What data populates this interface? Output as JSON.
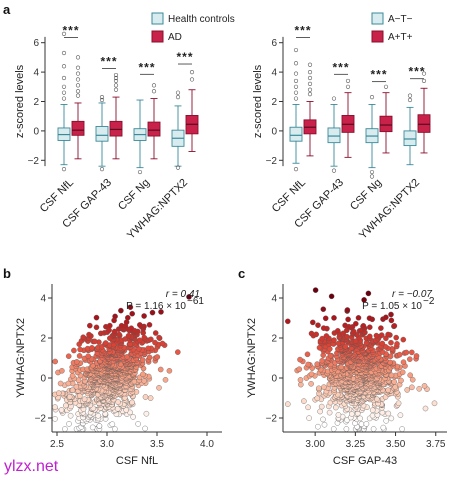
{
  "watermark": "ylzx.net",
  "chart_data": [
    {
      "panel": "a",
      "type": "box",
      "ylabel": "z-scored levels",
      "ylim": [
        -3,
        7
      ],
      "yticks": [
        -2,
        0,
        2,
        4,
        6
      ],
      "categories": [
        "CSF NfL",
        "CSF GAP-43",
        "CSF Ng",
        "YWHAG:NPTX2"
      ],
      "significance": [
        "***",
        "***",
        "***",
        "***"
      ],
      "series": [
        {
          "name": "Health controls",
          "color": "#d8ecef",
          "edge": "#3a8a99",
          "boxes": [
            {
              "q1": -0.65,
              "median": -0.25,
              "q3": 0.2,
              "wlo": -2.3,
              "whi": 1.8,
              "outliers": [
                2.2,
                2.6,
                3.0,
                3.6,
                4.4,
                5.3,
                6.6,
                -2.6
              ]
            },
            {
              "q1": -0.7,
              "median": -0.3,
              "q3": 0.3,
              "wlo": -2.4,
              "whi": 1.9,
              "outliers": [
                2.1,
                2.3,
                -2.6
              ]
            },
            {
              "q1": -0.65,
              "median": -0.25,
              "q3": 0.15,
              "wlo": -2.5,
              "whi": 2.1,
              "outliers": [
                -2.8
              ]
            },
            {
              "q1": -1.05,
              "median": -0.5,
              "q3": 0.05,
              "wlo": -2.4,
              "whi": 1.7,
              "outliers": [
                2.3,
                2.6,
                -2.5
              ]
            }
          ]
        },
        {
          "name": "AD",
          "color": "#c8224a",
          "edge": "#8a0f2c",
          "boxes": [
            {
              "q1": -0.3,
              "median": 0.05,
              "q3": 0.65,
              "wlo": -1.9,
              "whi": 1.9,
              "outliers": [
                2.4,
                2.7,
                3.1,
                3.5,
                3.9,
                4.3,
                5.0
              ]
            },
            {
              "q1": -0.35,
              "median": 0.1,
              "q3": 0.65,
              "wlo": -1.9,
              "whi": 2.3,
              "outliers": [
                2.8,
                3.1,
                3.4,
                3.6,
                3.8
              ]
            },
            {
              "q1": -0.35,
              "median": 0.05,
              "q3": 0.6,
              "wlo": -1.9,
              "whi": 2.2,
              "outliers": [
                2.7,
                3.1
              ]
            },
            {
              "q1": -0.2,
              "median": 0.45,
              "q3": 1.05,
              "wlo": -1.4,
              "whi": 2.8,
              "outliers": [
                3.5,
                4.0
              ]
            }
          ]
        }
      ]
    },
    {
      "panel": "",
      "type": "box",
      "ylabel": "z-scored levels",
      "ylim": [
        -3,
        7
      ],
      "yticks": [
        -2,
        0,
        2,
        4,
        6
      ],
      "categories": [
        "CSF NfL",
        "CSF GAP-43",
        "CSF Ng",
        "YWHAG:NPTX2"
      ],
      "significance": [
        "***",
        "***",
        "***",
        "***"
      ],
      "series": [
        {
          "name": "A−T−",
          "color": "#d8ecef",
          "edge": "#3a8a99",
          "boxes": [
            {
              "q1": -0.7,
              "median": -0.3,
              "q3": 0.25,
              "wlo": -2.2,
              "whi": 1.8,
              "outliers": [
                2.2,
                2.6,
                3.0,
                3.4,
                3.9,
                4.6,
                5.5,
                -2.6
              ]
            },
            {
              "q1": -0.8,
              "median": -0.35,
              "q3": 0.2,
              "wlo": -2.4,
              "whi": 1.8,
              "outliers": [
                2.2,
                -2.7
              ]
            },
            {
              "q1": -0.8,
              "median": -0.35,
              "q3": 0.15,
              "wlo": -2.5,
              "whi": 1.8,
              "outliers": [
                2.3,
                -2.8,
                -3.1
              ]
            },
            {
              "q1": -1.0,
              "median": -0.55,
              "q3": 0.0,
              "wlo": -2.3,
              "whi": 1.6,
              "outliers": [
                2.1,
                2.4
              ]
            }
          ]
        },
        {
          "name": "A+T+",
          "color": "#c8224a",
          "edge": "#8a0f2c",
          "boxes": [
            {
              "q1": -0.2,
              "median": 0.25,
              "q3": 0.75,
              "wlo": -1.7,
              "whi": 2.0,
              "outliers": [
                2.5,
                2.8,
                3.2,
                3.6,
                4.0,
                4.5
              ]
            },
            {
              "q1": -0.1,
              "median": 0.45,
              "q3": 1.05,
              "wlo": -1.8,
              "whi": 2.6,
              "outliers": [
                3.0,
                3.4
              ]
            },
            {
              "q1": -0.05,
              "median": 0.4,
              "q3": 1.0,
              "wlo": -1.5,
              "whi": 2.6,
              "outliers": [
                3.0
              ]
            },
            {
              "q1": -0.1,
              "median": 0.45,
              "q3": 1.1,
              "wlo": -1.5,
              "whi": 2.9,
              "outliers": [
                3.4,
                3.9
              ]
            }
          ]
        }
      ]
    },
    {
      "panel": "b",
      "type": "scatter",
      "xlabel": "CSF NfL",
      "ylabel": "YWHAG:NPTX2",
      "xlim": [
        2.45,
        4.15
      ],
      "ylim": [
        -2.7,
        4.7
      ],
      "xticks": [
        "2.5",
        "3.0",
        "3.5",
        "4.0"
      ],
      "yticks": [
        "-2",
        "0",
        "2",
        "4"
      ],
      "stats": {
        "r": "r = 0.41",
        "p": "P = 1.16 × 10",
        "p_exp": "−61"
      },
      "cloud": {
        "x_mean": 3.02,
        "x_sd": 0.21,
        "corr": 0.41,
        "n": 900
      }
    },
    {
      "panel": "c",
      "type": "scatter",
      "xlabel": "CSF GAP-43",
      "ylabel": "YWHAG:NPTX2",
      "xlim": [
        2.8,
        3.82
      ],
      "ylim": [
        -2.7,
        4.7
      ],
      "xticks": [
        "3.00",
        "3.25",
        "3.50",
        "3.75"
      ],
      "yticks": [
        "-2",
        "0",
        "2",
        "4"
      ],
      "stats": {
        "r": "r = −0.07",
        "p": "P = 1.05 × 10",
        "p_exp": "−2"
      },
      "cloud": {
        "x_mean": 3.28,
        "x_sd": 0.14,
        "corr": -0.07,
        "n": 900
      }
    }
  ]
}
